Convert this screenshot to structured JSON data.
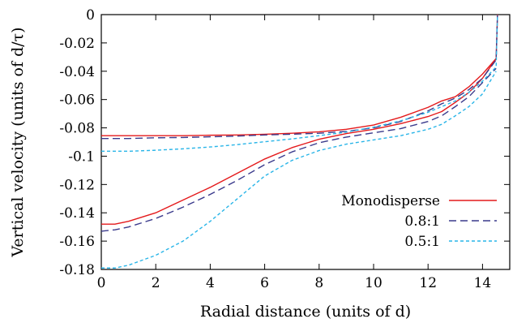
{
  "chart_data": {
    "type": "line",
    "xlabel": "Radial distance (units of d)",
    "ylabel": "Vertical velocity (units of d/τ)",
    "xlim": [
      0,
      15
    ],
    "ylim": [
      -0.18,
      0
    ],
    "x_ticks": [
      "0",
      "2",
      "4",
      "6",
      "8",
      "10",
      "12",
      "14"
    ],
    "y_ticks": [
      "0",
      "-0.02",
      "-0.04",
      "-0.06",
      "-0.08",
      "-0.1",
      "-0.12",
      "-0.14",
      "-0.16",
      "-0.18"
    ],
    "legend_position": "bottom-right",
    "series": [
      {
        "name": "Monodisperse",
        "color": "#e41a1c",
        "dash": "solid",
        "curves": [
          {
            "x": [
              0,
              1,
              2,
              3,
              4,
              5,
              6,
              7,
              8,
              9,
              10,
              11,
              12,
              12.5,
              13,
              13.5,
              14,
              14.5,
              14.55
            ],
            "y": [
              -0.0855,
              -0.0855,
              -0.0855,
              -0.0855,
              -0.0852,
              -0.085,
              -0.0845,
              -0.0838,
              -0.0828,
              -0.081,
              -0.078,
              -0.0725,
              -0.0655,
              -0.061,
              -0.058,
              -0.051,
              -0.042,
              -0.031,
              0
            ]
          },
          {
            "x": [
              0,
              0.5,
              1,
              2,
              3,
              4,
              5,
              6,
              7,
              8,
              9,
              10,
              11,
              12,
              12.5,
              13,
              13.5,
              14,
              14.5
            ],
            "y": [
              -0.148,
              -0.148,
              -0.146,
              -0.14,
              -0.131,
              -0.122,
              -0.112,
              -0.102,
              -0.094,
              -0.088,
              -0.084,
              -0.081,
              -0.077,
              -0.072,
              -0.0685,
              -0.062,
              -0.055,
              -0.045,
              -0.031
            ]
          }
        ]
      },
      {
        "name": "0.8:1",
        "color": "#3a3a8c",
        "dash": "long",
        "curves": [
          {
            "x": [
              0,
              1,
              2,
              3,
              4,
              5,
              6,
              7,
              8,
              9,
              10,
              11,
              12,
              12.5,
              13,
              13.5,
              14,
              14.5,
              14.55
            ],
            "y": [
              -0.0875,
              -0.0875,
              -0.087,
              -0.0868,
              -0.0863,
              -0.0858,
              -0.085,
              -0.0845,
              -0.0838,
              -0.0825,
              -0.08,
              -0.0755,
              -0.068,
              -0.063,
              -0.059,
              -0.053,
              -0.045,
              -0.032,
              0
            ]
          },
          {
            "x": [
              0,
              0.5,
              1,
              2,
              3,
              4,
              5,
              6,
              7,
              8,
              9,
              10,
              11,
              12,
              12.5,
              13,
              13.5,
              14,
              14.5
            ],
            "y": [
              -0.153,
              -0.152,
              -0.15,
              -0.144,
              -0.136,
              -0.127,
              -0.117,
              -0.106,
              -0.097,
              -0.0905,
              -0.0865,
              -0.0835,
              -0.0805,
              -0.0755,
              -0.0715,
              -0.065,
              -0.058,
              -0.048,
              -0.038
            ]
          }
        ]
      },
      {
        "name": "0.5:1",
        "color": "#29b5e8",
        "dash": "short",
        "curves": [
          {
            "x": [
              0,
              1,
              2,
              3,
              4,
              5,
              6,
              7,
              8,
              9,
              10,
              11,
              12,
              12.5,
              13,
              13.5,
              14,
              14.5,
              14.55
            ],
            "y": [
              -0.0965,
              -0.0965,
              -0.0958,
              -0.0948,
              -0.0935,
              -0.0918,
              -0.0898,
              -0.0878,
              -0.0855,
              -0.083,
              -0.0795,
              -0.075,
              -0.069,
              -0.065,
              -0.061,
              -0.055,
              -0.047,
              -0.037,
              0
            ]
          },
          {
            "x": [
              0,
              0.5,
              1,
              2,
              3,
              4,
              5,
              6,
              7,
              8,
              9,
              10,
              11,
              12,
              12.5,
              13,
              13.5,
              14,
              14.5
            ],
            "y": [
              -0.179,
              -0.179,
              -0.177,
              -0.17,
              -0.16,
              -0.146,
              -0.13,
              -0.114,
              -0.103,
              -0.096,
              -0.0915,
              -0.0885,
              -0.0855,
              -0.081,
              -0.0775,
              -0.0715,
              -0.065,
              -0.056,
              -0.04
            ]
          }
        ]
      }
    ]
  }
}
